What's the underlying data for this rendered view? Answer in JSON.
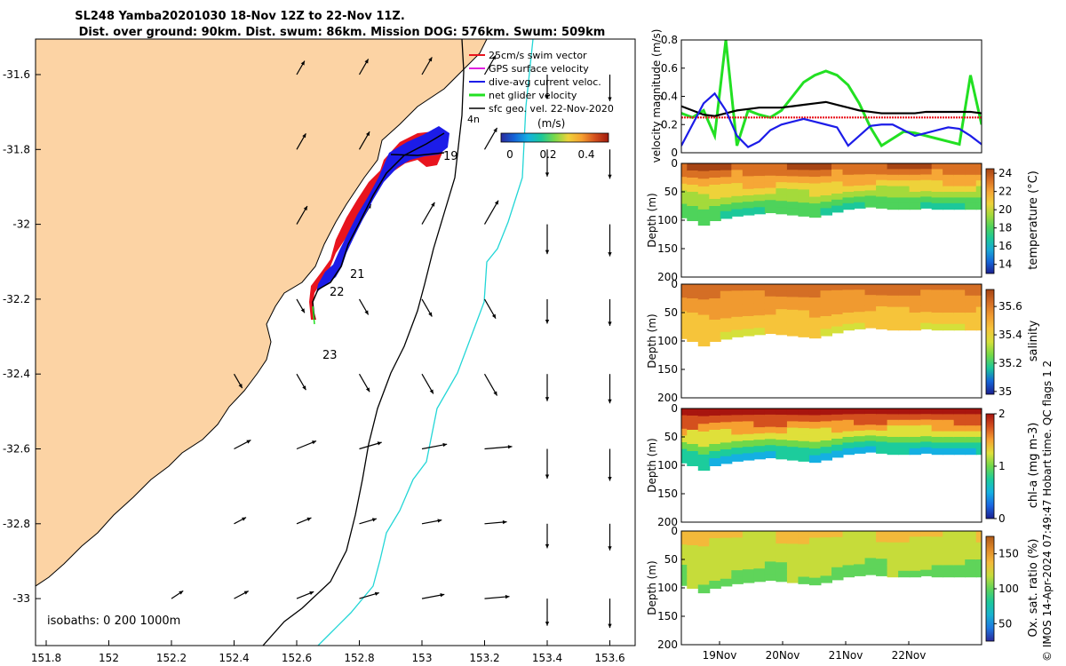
{
  "colors": {
    "land": "#fcd3a4",
    "temperature_cmap": [
      "#1b1f8f",
      "#1565d8",
      "#1aa7d6",
      "#1cc89a",
      "#4ed35b",
      "#a4da3b",
      "#eed23a",
      "#f6a736",
      "#d97023",
      "#a64414"
    ],
    "salinity_cmap": [
      "#1b1f8f",
      "#1565d8",
      "#1cc89a",
      "#74d946",
      "#d5e03a",
      "#f6c43a",
      "#f09a30",
      "#d46e25",
      "#a64414"
    ],
    "chl_cmap": [
      "#1b1f8f",
      "#1a66e2",
      "#14b0e2",
      "#1ccc9c",
      "#6fd84a",
      "#dfe03a",
      "#f6a030",
      "#d4501e",
      "#a8150f"
    ],
    "oxy_cmap": [
      "#2a2a9c",
      "#1e78e0",
      "#18b2d0",
      "#1cc89a",
      "#5fd45a",
      "#c6dc3a",
      "#f3b93a",
      "#e08a28",
      "#b05a18"
    ],
    "vel_cmap": [
      "#2a2a9c",
      "#1565d8",
      "#14b0e2",
      "#1cc89a",
      "#7ad84a",
      "#eed23a",
      "#f6a030",
      "#d4501e",
      "#a01a0e"
    ]
  },
  "title": {
    "line1": "SL248 Yamba20201030 18-Nov 12Z to 22-Nov 11Z.",
    "line2": "Dist. over ground: 90km. Dist. swum: 86km. Mission DOG: 576km. Swum: 509km"
  },
  "map": {
    "lon_ticks": [
      "151.8",
      "152",
      "152.2",
      "152.4",
      "152.6",
      "152.8",
      "153",
      "153.2",
      "153.4",
      "153.6"
    ],
    "lat_ticks": [
      "-31.6",
      "-31.8",
      "-32",
      "-32.2",
      "-32.4",
      "-32.6",
      "-32.8",
      "-33"
    ],
    "legend": [
      {
        "label": "25cm/s swim vector",
        "color": "#e8141e"
      },
      {
        "label": "GPS surface velocity",
        "color": "#e020e0"
      },
      {
        "label": "dive-avg current veloc.",
        "color": "#1c1ce8"
      },
      {
        "label": "net glider velocity",
        "color": "#22e022"
      },
      {
        "label": "sfc geo. vel. 22-Nov-2020",
        "color": "#000000"
      }
    ],
    "colorbar_unit": "(m/s)",
    "colorbar_ticks": [
      "0",
      "0.2",
      "0.4"
    ],
    "day_labels": [
      "19",
      "21",
      "22",
      "23"
    ],
    "isobaths": "isobaths: 0   200  1000m",
    "stray_label": "4n"
  },
  "chart_data": [
    {
      "type": "line",
      "title": "",
      "ylabel": "velocity magnitude (m/s)",
      "ylim": [
        0,
        0.8
      ],
      "yticks": [
        "0",
        "0.2",
        "0.4",
        "0.6",
        "0.8"
      ],
      "series": [
        {
          "name": "net glider velocity",
          "color": "#22e022",
          "values": [
            0.28,
            0.25,
            0.3,
            0.12,
            0.8,
            0.05,
            0.3,
            0.27,
            0.25,
            0.3,
            0.4,
            0.5,
            0.55,
            0.58,
            0.55,
            0.48,
            0.35,
            0.18,
            0.05,
            0.1,
            0.15,
            0.14,
            0.12,
            0.1,
            0.08,
            0.06,
            0.55,
            0.2
          ]
        },
        {
          "name": "sfc geo. vel.",
          "color": "#000000",
          "values": [
            0.33,
            0.3,
            0.27,
            0.26,
            0.28,
            0.3,
            0.31,
            0.32,
            0.32,
            0.32,
            0.33,
            0.34,
            0.35,
            0.36,
            0.34,
            0.32,
            0.3,
            0.29,
            0.28,
            0.28,
            0.28,
            0.28,
            0.29,
            0.29,
            0.29,
            0.29,
            0.29,
            0.28
          ]
        },
        {
          "name": "25cm/s swim",
          "color": "#e8141e",
          "values": [
            0.25,
            0.25,
            0.25,
            0.25,
            0.25,
            0.25,
            0.25,
            0.25,
            0.25,
            0.25,
            0.25,
            0.25,
            0.25,
            0.25,
            0.25,
            0.25,
            0.25,
            0.25,
            0.25,
            0.25,
            0.25,
            0.25,
            0.25,
            0.25,
            0.25,
            0.25,
            0.25,
            0.25
          ]
        },
        {
          "name": "dive-avg current",
          "color": "#1c1ce8",
          "values": [
            0.05,
            0.2,
            0.35,
            0.42,
            0.3,
            0.12,
            0.04,
            0.08,
            0.16,
            0.2,
            0.22,
            0.24,
            0.22,
            0.2,
            0.18,
            0.05,
            0.12,
            0.19,
            0.2,
            0.2,
            0.16,
            0.12,
            0.14,
            0.16,
            0.18,
            0.17,
            0.12,
            0.06
          ]
        }
      ]
    },
    {
      "type": "heatmap",
      "ylabel": "Depth (m)",
      "cbar_label": "temperature (°C)",
      "ylim": [
        200,
        0
      ],
      "yticks": [
        "0",
        "50",
        "100",
        "150",
        "200"
      ],
      "cbar_ticks": [
        "14",
        "16",
        "18",
        "20",
        "22",
        "24"
      ],
      "cbar_range": [
        13,
        24.5
      ],
      "bottom_depth": [
        95,
        100,
        108,
        100,
        96,
        92,
        90,
        88,
        86,
        88,
        90,
        92,
        94,
        90,
        85,
        80,
        78,
        76,
        78,
        80,
        80,
        80,
        78,
        80,
        80,
        80,
        80,
        80
      ],
      "surface_value": 23.8,
      "deep_value": 17.5,
      "xticks": [
        "19Nov",
        "20Nov",
        "21Nov",
        "22Nov"
      ]
    },
    {
      "type": "heatmap",
      "ylabel": "Depth (m)",
      "cbar_label": "salinity",
      "ylim": [
        200,
        0
      ],
      "yticks": [
        "0",
        "50",
        "100",
        "150",
        "200"
      ],
      "cbar_ticks": [
        "35",
        "35.2",
        "35.4",
        "35.6"
      ],
      "cbar_range": [
        34.98,
        35.72
      ],
      "bottom_depth": [
        95,
        100,
        108,
        100,
        96,
        92,
        90,
        88,
        86,
        88,
        90,
        92,
        94,
        90,
        85,
        80,
        78,
        76,
        78,
        80,
        80,
        80,
        78,
        80,
        80,
        80,
        80,
        80
      ],
      "surface_value": 35.62,
      "deep_value": 35.4,
      "xticks": [
        "19Nov",
        "20Nov",
        "21Nov",
        "22Nov"
      ]
    },
    {
      "type": "heatmap",
      "ylabel": "Depth (m)",
      "cbar_label": "chl-a (mg m-3)",
      "ylim": [
        200,
        0
      ],
      "yticks": [
        "0",
        "50",
        "100",
        "150",
        "200"
      ],
      "cbar_ticks": [
        "0",
        "1",
        "2"
      ],
      "cbar_range": [
        0,
        2
      ],
      "bottom_depth": [
        95,
        100,
        108,
        100,
        96,
        92,
        90,
        88,
        86,
        88,
        90,
        92,
        94,
        90,
        85,
        80,
        78,
        76,
        78,
        80,
        80,
        80,
        78,
        80,
        80,
        80,
        80,
        80
      ],
      "surface_value": 2,
      "deep_value": 0.6,
      "xticks": [
        "19Nov",
        "20Nov",
        "21Nov",
        "22Nov"
      ]
    },
    {
      "type": "heatmap",
      "ylabel": "Depth (m)",
      "cbar_label": "Ox. sat. ratio (%)",
      "ylim": [
        200,
        0
      ],
      "yticks": [
        "0",
        "50",
        "100",
        "150",
        "200"
      ],
      "cbar_ticks": [
        "50",
        "100",
        "150"
      ],
      "cbar_range": [
        25,
        175
      ],
      "bottom_depth": [
        95,
        100,
        108,
        100,
        96,
        92,
        90,
        88,
        86,
        88,
        90,
        92,
        94,
        90,
        85,
        80,
        78,
        76,
        78,
        80,
        80,
        80,
        78,
        80,
        80,
        80,
        80,
        80
      ],
      "surface_value": 130,
      "deep_value": 105,
      "xticks": [
        "19Nov",
        "20Nov",
        "21Nov",
        "22Nov"
      ]
    }
  ],
  "footer": {
    "credit": "© IMOS 14-Apr-2024 07:49:47 Hobart time. QC flags 1  2"
  }
}
